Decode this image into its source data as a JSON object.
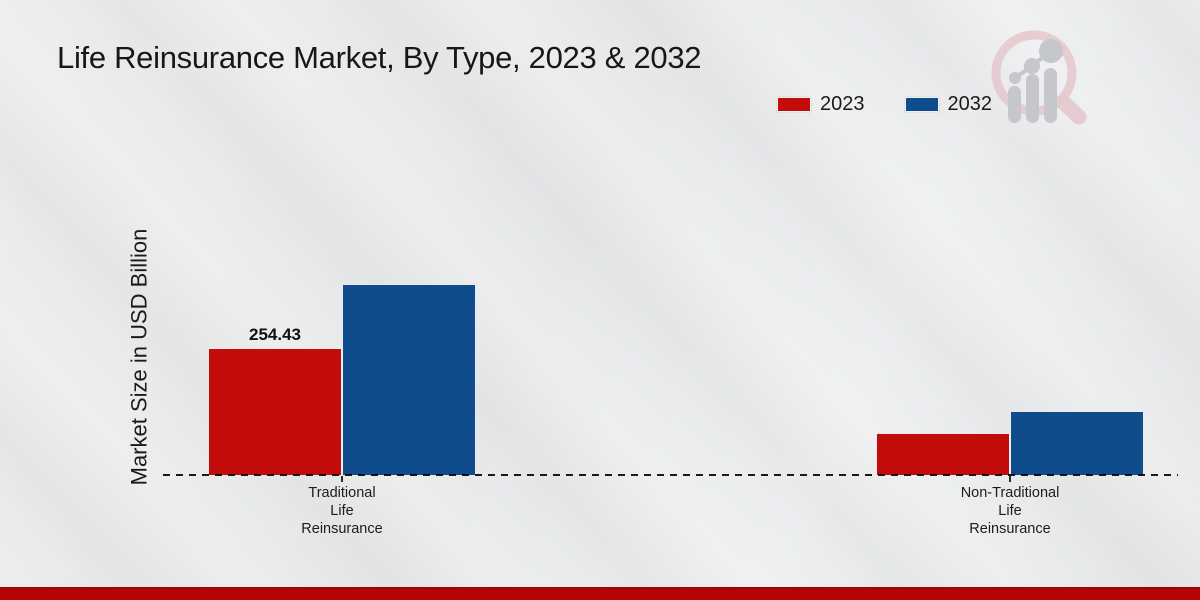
{
  "header": {
    "title": "Life Reinsurance Market, By Type, 2023 & 2032"
  },
  "icons": {
    "logo": "magnifier-bar-chart-watermark"
  },
  "legend": {
    "items": [
      {
        "label": "2023",
        "color": "#c20b0b"
      },
      {
        "label": "2032",
        "color": "#0f4c8c"
      }
    ]
  },
  "colors": {
    "background": "#e8e9ea",
    "axis": "#1c1c1c",
    "footer_bar": "#b30505",
    "logo_ring": "#e4c9ce",
    "logo_bars": "#c6c7ca"
  },
  "chart_data": {
    "type": "bar",
    "title": "Life Reinsurance Market, By Type, 2023 & 2032",
    "xlabel": "",
    "ylabel": "Market Size in USD Billion",
    "categories": [
      "Traditional Life Reinsurance",
      "Non-Traditional Life Reinsurance"
    ],
    "categories_lines": [
      [
        "Traditional",
        "Life",
        "Reinsurance"
      ],
      [
        "Non-Traditional",
        "Life",
        "Reinsurance"
      ]
    ],
    "series": [
      {
        "name": "2023",
        "color": "#c20b0b",
        "values": [
          254.43,
          84
        ]
      },
      {
        "name": "2032",
        "color": "#0f4c8c",
        "values": [
          382,
          128
        ]
      }
    ],
    "value_labels": [
      {
        "series_index": 0,
        "category_index": 0,
        "text": "254.43"
      }
    ],
    "ylim": [
      0,
      420
    ],
    "grid": false,
    "legend_position": "top-right",
    "baseline_style": "dashed"
  }
}
